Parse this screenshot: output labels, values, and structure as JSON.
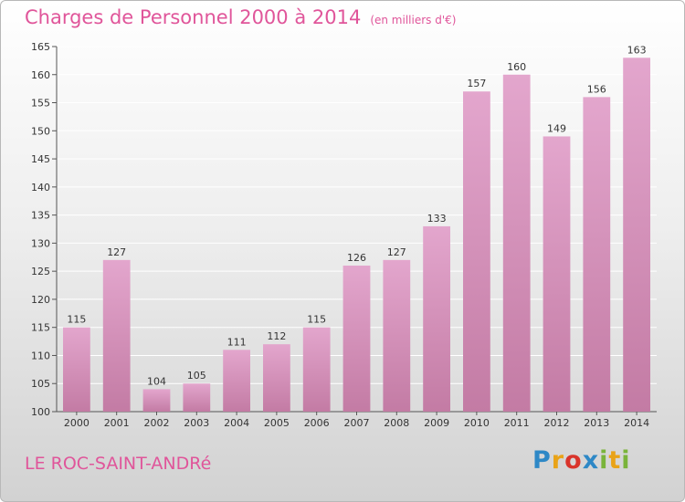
{
  "header": {
    "title": "Charges de Personnel 2000 à 2014",
    "unit": "(en milliers d'€)"
  },
  "footer": {
    "location": "LE ROC-SAINT-ANDRé",
    "logo": "Proxiti"
  },
  "colors": {
    "title": "#e0559a",
    "bar_light": "#e3a6cd",
    "bar_dark": "#c37ba4",
    "grid": "#ffffff"
  },
  "chart_data": {
    "type": "bar",
    "title": "Charges de Personnel 2000 à 2014",
    "subtitle": "(en milliers d'€)",
    "categories": [
      "2000",
      "2001",
      "2002",
      "2003",
      "2004",
      "2005",
      "2006",
      "2007",
      "2008",
      "2009",
      "2010",
      "2011",
      "2012",
      "2013",
      "2014"
    ],
    "values": [
      115,
      127,
      104,
      105,
      111,
      112,
      115,
      126,
      127,
      133,
      157,
      160,
      149,
      156,
      163
    ],
    "ylim": [
      100,
      165
    ],
    "yticks": [
      100,
      105,
      110,
      115,
      120,
      125,
      130,
      135,
      140,
      145,
      150,
      155,
      160,
      165
    ],
    "grid": true,
    "show_data_labels": true
  }
}
